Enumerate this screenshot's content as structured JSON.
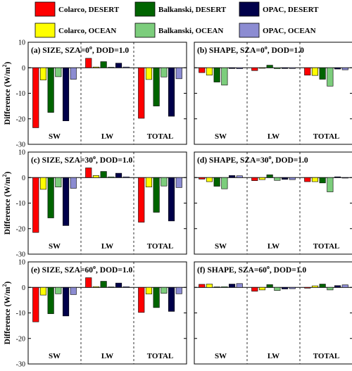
{
  "legend": {
    "placement": "top",
    "items": [
      {
        "name": "Colarco, DESERT",
        "color": "#ff0000"
      },
      {
        "name": "Balkanski, DESERT",
        "color": "#006400"
      },
      {
        "name": "OPAC, DESERT",
        "color": "#00004a"
      },
      {
        "name": "Colarco, OCEAN",
        "color": "#ffff00"
      },
      {
        "name": "Balkanski, OCEAN",
        "color": "#7ccd7c"
      },
      {
        "name": "OPAC, OCEAN",
        "color": "#8c8cd2"
      }
    ]
  },
  "axis": {
    "ylabel_prefix": "Difference (W/m",
    "ylabel_sup": "2",
    "ylabel_suffix": ")"
  },
  "chart_data": [
    {
      "type": "bar",
      "panel": "a",
      "title_prefix": "(a) SIZE, SZA=0",
      "title_sup": "o",
      "title_suffix": ", DOD=1.0",
      "categories": [
        "SW",
        "LW",
        "TOTAL"
      ],
      "ylim": [
        -30,
        10
      ],
      "yticks": [
        10,
        0,
        -10,
        -20,
        -30
      ],
      "grid": false,
      "series": [
        {
          "name": "Colarco, DESERT",
          "values": [
            -23.5,
            3.7,
            -19.8
          ]
        },
        {
          "name": "Colarco, OCEAN",
          "values": [
            -4.8,
            0.3,
            -4.6
          ]
        },
        {
          "name": "Balkanski, DESERT",
          "values": [
            -17.5,
            2.4,
            -15.0
          ]
        },
        {
          "name": "Balkanski, OCEAN",
          "values": [
            -3.5,
            0.2,
            -3.6
          ]
        },
        {
          "name": "OPAC, DESERT",
          "values": [
            -20.8,
            1.8,
            -19.0
          ]
        },
        {
          "name": "OPAC, OCEAN",
          "values": [
            -4.5,
            0.3,
            -4.3
          ]
        }
      ]
    },
    {
      "type": "bar",
      "panel": "b",
      "title_prefix": "(b) SHAPE, SZA=0",
      "title_sup": "o",
      "title_suffix": ", DOD=1.0",
      "categories": [
        "SW",
        "LW",
        "TOTAL"
      ],
      "ylim": [
        -30,
        10
      ],
      "yticks": [
        10,
        0,
        -10,
        -20,
        -30
      ],
      "grid": false,
      "series": [
        {
          "name": "Colarco, DESERT",
          "values": [
            -1.9,
            -1.1,
            -2.9
          ]
        },
        {
          "name": "Colarco, OCEAN",
          "values": [
            -2.9,
            -0.2,
            -3.0
          ]
        },
        {
          "name": "Balkanski, DESERT",
          "values": [
            -5.6,
            1.0,
            -4.5
          ]
        },
        {
          "name": "Balkanski, OCEAN",
          "values": [
            -6.8,
            -0.4,
            -7.2
          ]
        },
        {
          "name": "OPAC, DESERT",
          "values": [
            -0.3,
            -0.3,
            -0.5
          ]
        },
        {
          "name": "OPAC, OCEAN",
          "values": [
            -0.4,
            -0.3,
            -0.8
          ]
        }
      ]
    },
    {
      "type": "bar",
      "panel": "c",
      "title_prefix": "(c) SIZE, SZA=30",
      "title_sup": "o",
      "title_suffix": ", DOD=1.0",
      "categories": [
        "SW",
        "LW",
        "TOTAL"
      ],
      "ylim": [
        -30,
        10
      ],
      "yticks": [
        10,
        0,
        -10,
        -20,
        -30
      ],
      "grid": false,
      "series": [
        {
          "name": "Colarco, DESERT",
          "values": [
            -21.5,
            3.8,
            -17.5
          ]
        },
        {
          "name": "Colarco, OCEAN",
          "values": [
            -4.6,
            0.8,
            -3.7
          ]
        },
        {
          "name": "Balkanski, DESERT",
          "values": [
            -15.8,
            2.4,
            -13.6
          ]
        },
        {
          "name": "Balkanski, OCEAN",
          "values": [
            -3.7,
            0.3,
            -3.3
          ]
        },
        {
          "name": "OPAC, DESERT",
          "values": [
            -18.8,
            1.7,
            -17.0
          ]
        },
        {
          "name": "OPAC, OCEAN",
          "values": [
            -4.2,
            0.3,
            -3.9
          ]
        }
      ]
    },
    {
      "type": "bar",
      "panel": "d",
      "title_prefix": "(d) SHAPE, SZA=30",
      "title_sup": "o",
      "title_suffix": ", DOD=1.0",
      "categories": [
        "SW",
        "LW",
        "TOTAL"
      ],
      "ylim": [
        -30,
        10
      ],
      "yticks": [
        10,
        0,
        -10,
        -20,
        -30
      ],
      "grid": false,
      "series": [
        {
          "name": "Colarco, DESERT",
          "values": [
            -0.6,
            -1.2,
            -1.6
          ]
        },
        {
          "name": "Colarco, OCEAN",
          "values": [
            -1.6,
            -0.8,
            -1.6
          ]
        },
        {
          "name": "Balkanski, DESERT",
          "values": [
            -3.4,
            1.1,
            -2.1
          ]
        },
        {
          "name": "Balkanski, OCEAN",
          "values": [
            -4.4,
            -1.1,
            -5.6
          ]
        },
        {
          "name": "OPAC, DESERT",
          "values": [
            0.8,
            -0.7,
            0.3
          ]
        },
        {
          "name": "OPAC, OCEAN",
          "values": [
            0.7,
            -0.8,
            -0.2
          ]
        }
      ]
    },
    {
      "type": "bar",
      "panel": "e",
      "title_prefix": "(e) SIZE, SZA=60",
      "title_sup": "o",
      "title_suffix": ", DOD=1.0",
      "categories": [
        "SW",
        "LW",
        "TOTAL"
      ],
      "ylim": [
        -30,
        10
      ],
      "yticks": [
        10,
        0,
        -10,
        -20,
        -30
      ],
      "grid": false,
      "series": [
        {
          "name": "Colarco, DESERT",
          "values": [
            -13.5,
            3.8,
            -9.8
          ]
        },
        {
          "name": "Colarco, OCEAN",
          "values": [
            -3.0,
            0.3,
            -2.6
          ]
        },
        {
          "name": "Balkanski, DESERT",
          "values": [
            -10.3,
            2.4,
            -7.9
          ]
        },
        {
          "name": "Balkanski, OCEAN",
          "values": [
            -2.5,
            0.2,
            -2.3
          ]
        },
        {
          "name": "OPAC, DESERT",
          "values": [
            -11.2,
            1.7,
            -9.4
          ]
        },
        {
          "name": "OPAC, OCEAN",
          "values": [
            -2.8,
            0.3,
            -2.5
          ]
        }
      ]
    },
    {
      "type": "bar",
      "panel": "f",
      "title_prefix": "(f) SHAPE, SZA=60",
      "title_sup": "o",
      "title_suffix": ", DOD=1.0",
      "categories": [
        "SW",
        "LW",
        "TOTAL"
      ],
      "ylim": [
        -30,
        10
      ],
      "yticks": [
        10,
        0,
        -10,
        -20,
        -30
      ],
      "grid": false,
      "series": [
        {
          "name": "Colarco, DESERT",
          "values": [
            1.2,
            -1.5,
            -0.3
          ]
        },
        {
          "name": "Colarco, OCEAN",
          "values": [
            1.3,
            -1.0,
            0.6
          ]
        },
        {
          "name": "Balkanski, DESERT",
          "values": [
            0.2,
            1.1,
            1.3
          ]
        },
        {
          "name": "Balkanski, OCEAN",
          "values": [
            0.3,
            -1.2,
            -1.0
          ]
        },
        {
          "name": "OPAC, DESERT",
          "values": [
            1.3,
            -0.6,
            0.7
          ]
        },
        {
          "name": "OPAC, OCEAN",
          "values": [
            1.5,
            -0.5,
            1.0
          ]
        }
      ]
    }
  ]
}
